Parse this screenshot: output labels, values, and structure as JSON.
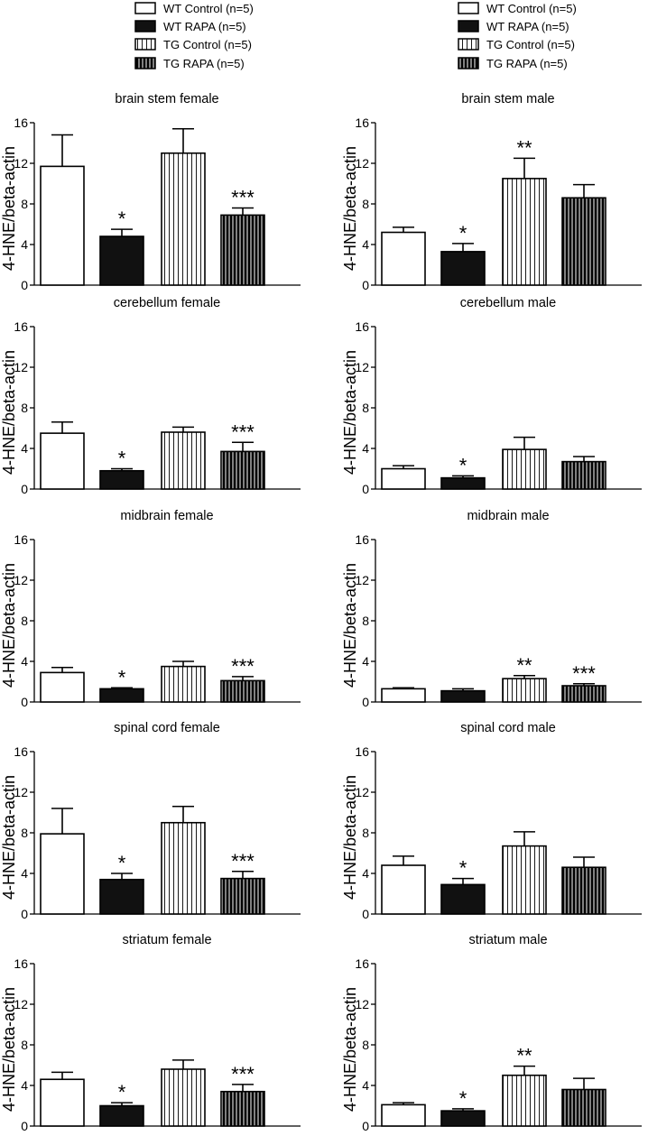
{
  "legend": [
    {
      "label": "WT Control (n=5)",
      "pattern": "open"
    },
    {
      "label": "WT RAPA (n=5)",
      "pattern": "solid"
    },
    {
      "label": "TG Control (n=5)",
      "pattern": "vstripes-light"
    },
    {
      "label": "TG RAPA (n=5)",
      "pattern": "vstripes-dark"
    }
  ],
  "colors": {
    "ink": "#000000",
    "open_fill": "#ffffff",
    "solid_fill": "#111111"
  },
  "chart_data": [
    {
      "type": "bar",
      "title": "brain stem female",
      "ylabel": "4-HNE/beta-actin",
      "ylim": [
        0,
        16
      ],
      "yticks": [
        "0",
        "4",
        "8",
        "12",
        "16"
      ],
      "categories": [
        "WT Control (n=5)",
        "WT RAPA (n=5)",
        "TG Control (n=5)",
        "TG RAPA (n=5)"
      ],
      "values": [
        11.7,
        4.8,
        13.0,
        6.9
      ],
      "errors": [
        3.1,
        0.7,
        2.4,
        0.7
      ],
      "annotations": [
        "",
        "*",
        "",
        "***"
      ]
    },
    {
      "type": "bar",
      "title": "brain stem male",
      "ylabel": "4-HNE/beta-actin",
      "ylim": [
        0,
        16
      ],
      "yticks": [
        "0",
        "4",
        "8",
        "12",
        "16"
      ],
      "categories": [
        "WT Control (n=5)",
        "WT RAPA (n=5)",
        "TG Control (n=5)",
        "TG RAPA (n=5)"
      ],
      "values": [
        5.2,
        3.3,
        10.5,
        8.6
      ],
      "errors": [
        0.5,
        0.8,
        2.0,
        1.3
      ],
      "annotations": [
        "",
        "*",
        "**",
        ""
      ]
    },
    {
      "type": "bar",
      "title": "cerebellum female",
      "ylabel": "4-HNE/beta-actin",
      "ylim": [
        0,
        16
      ],
      "yticks": [
        "0",
        "4",
        "8",
        "12",
        "16"
      ],
      "categories": [
        "WT Control (n=5)",
        "WT RAPA (n=5)",
        "TG Control (n=5)",
        "TG RAPA (n=5)"
      ],
      "values": [
        5.5,
        1.8,
        5.6,
        3.7
      ],
      "errors": [
        1.1,
        0.2,
        0.5,
        0.9
      ],
      "annotations": [
        "",
        "*",
        "",
        "***"
      ]
    },
    {
      "type": "bar",
      "title": "cerebellum male",
      "ylabel": "4-HNE/beta-actin",
      "ylim": [
        0,
        16
      ],
      "yticks": [
        "0",
        "4",
        "8",
        "12",
        "16"
      ],
      "categories": [
        "WT Control (n=5)",
        "WT RAPA (n=5)",
        "TG Control (n=5)",
        "TG RAPA (n=5)"
      ],
      "values": [
        2.0,
        1.1,
        3.9,
        2.7
      ],
      "errors": [
        0.3,
        0.2,
        1.2,
        0.5
      ],
      "annotations": [
        "",
        "*",
        "",
        ""
      ]
    },
    {
      "type": "bar",
      "title": "midbrain female",
      "ylabel": "4-HNE/beta-actin",
      "ylim": [
        0,
        16
      ],
      "yticks": [
        "0",
        "4",
        "8",
        "12",
        "16"
      ],
      "categories": [
        "WT Control (n=5)",
        "WT RAPA (n=5)",
        "TG Control (n=5)",
        "TG RAPA (n=5)"
      ],
      "values": [
        2.9,
        1.3,
        3.5,
        2.1
      ],
      "errors": [
        0.5,
        0.1,
        0.5,
        0.4
      ],
      "annotations": [
        "",
        "*",
        "",
        "***"
      ]
    },
    {
      "type": "bar",
      "title": "midbrain male",
      "ylabel": "4-HNE/beta-actin",
      "ylim": [
        0,
        16
      ],
      "yticks": [
        "0",
        "4",
        "8",
        "12",
        "16"
      ],
      "categories": [
        "WT Control (n=5)",
        "WT RAPA (n=5)",
        "TG Control (n=5)",
        "TG RAPA (n=5)"
      ],
      "values": [
        1.3,
        1.1,
        2.3,
        1.6
      ],
      "errors": [
        0.1,
        0.2,
        0.3,
        0.2
      ],
      "annotations": [
        "",
        "",
        "**",
        "***"
      ]
    },
    {
      "type": "bar",
      "title": "spinal cord female",
      "ylabel": "4-HNE/beta-actin",
      "ylim": [
        0,
        16
      ],
      "yticks": [
        "0",
        "4",
        "8",
        "12",
        "16"
      ],
      "categories": [
        "WT Control (n=5)",
        "WT RAPA (n=5)",
        "TG Control (n=5)",
        "TG RAPA (n=5)"
      ],
      "values": [
        7.9,
        3.4,
        9.0,
        3.5
      ],
      "errors": [
        2.5,
        0.6,
        1.6,
        0.7
      ],
      "annotations": [
        "",
        "*",
        "",
        "***"
      ]
    },
    {
      "type": "bar",
      "title": "spinal cord male",
      "ylabel": "4-HNE/beta-actin",
      "ylim": [
        0,
        16
      ],
      "yticks": [
        "0",
        "4",
        "8",
        "12",
        "16"
      ],
      "categories": [
        "WT Control (n=5)",
        "WT RAPA (n=5)",
        "TG Control (n=5)",
        "TG RAPA (n=5)"
      ],
      "values": [
        4.8,
        2.9,
        6.7,
        4.6
      ],
      "errors": [
        0.9,
        0.6,
        1.4,
        1.0
      ],
      "annotations": [
        "",
        "*",
        "",
        ""
      ]
    },
    {
      "type": "bar",
      "title": "striatum female",
      "ylabel": "4-HNE/beta-actin",
      "ylim": [
        0,
        16
      ],
      "yticks": [
        "0",
        "4",
        "8",
        "12",
        "16"
      ],
      "categories": [
        "WT Control (n=5)",
        "WT RAPA (n=5)",
        "TG Control (n=5)",
        "TG RAPA (n=5)"
      ],
      "values": [
        4.6,
        2.0,
        5.6,
        3.4
      ],
      "errors": [
        0.7,
        0.3,
        0.9,
        0.7
      ],
      "annotations": [
        "",
        "*",
        "",
        "***"
      ]
    },
    {
      "type": "bar",
      "title": "striatum male",
      "ylabel": "4-HNE/beta-actin",
      "ylim": [
        0,
        16
      ],
      "yticks": [
        "0",
        "4",
        "8",
        "12",
        "16"
      ],
      "categories": [
        "WT Control (n=5)",
        "WT RAPA (n=5)",
        "TG Control (n=5)",
        "TG RAPA (n=5)"
      ],
      "values": [
        2.1,
        1.5,
        5.0,
        3.6
      ],
      "errors": [
        0.2,
        0.2,
        0.9,
        1.1
      ],
      "annotations": [
        "",
        "*",
        "**",
        ""
      ]
    }
  ]
}
